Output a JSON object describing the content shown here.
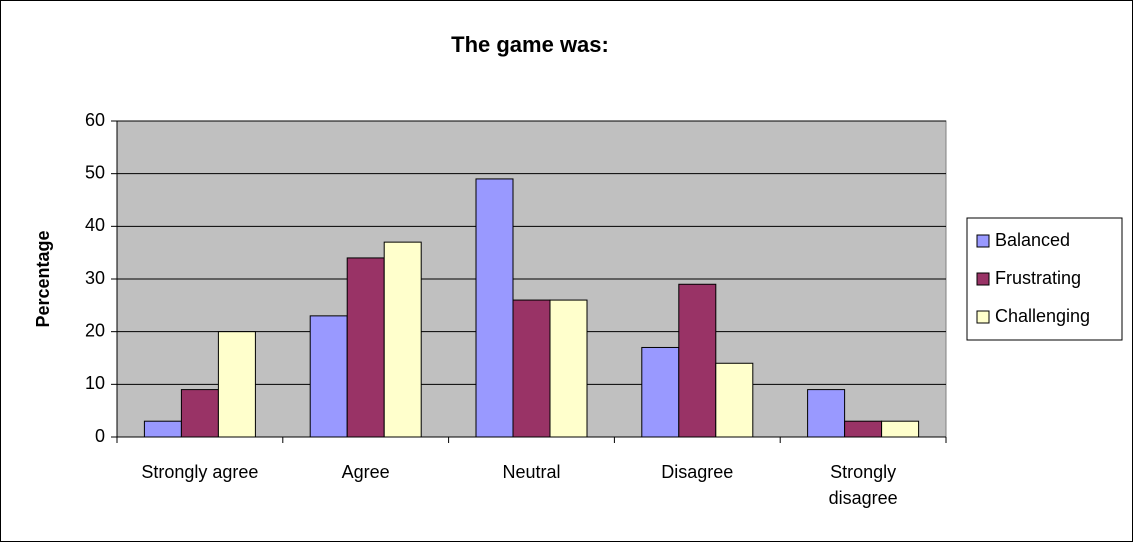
{
  "chart_data": {
    "type": "bar",
    "title": "The game was:",
    "y_label": "Percentage",
    "categories": [
      "Strongly agree",
      "Agree",
      "Neutral",
      "Disagree",
      "Strongly disagree"
    ],
    "series": [
      {
        "name": "Balanced",
        "color": "#9999ff",
        "values": [
          3,
          23,
          49,
          17,
          9
        ]
      },
      {
        "name": "Frustrating",
        "color": "#993366",
        "values": [
          9,
          34,
          26,
          29,
          3
        ]
      },
      {
        "name": "Challenging",
        "color": "#ffffcc",
        "values": [
          20,
          37,
          26,
          14,
          3
        ]
      }
    ],
    "ylim": [
      0,
      60
    ],
    "yticks": [
      0,
      10,
      20,
      30,
      40,
      50,
      60
    ],
    "grid": true,
    "legend": "right",
    "plot_background": "#c0c0c0"
  }
}
